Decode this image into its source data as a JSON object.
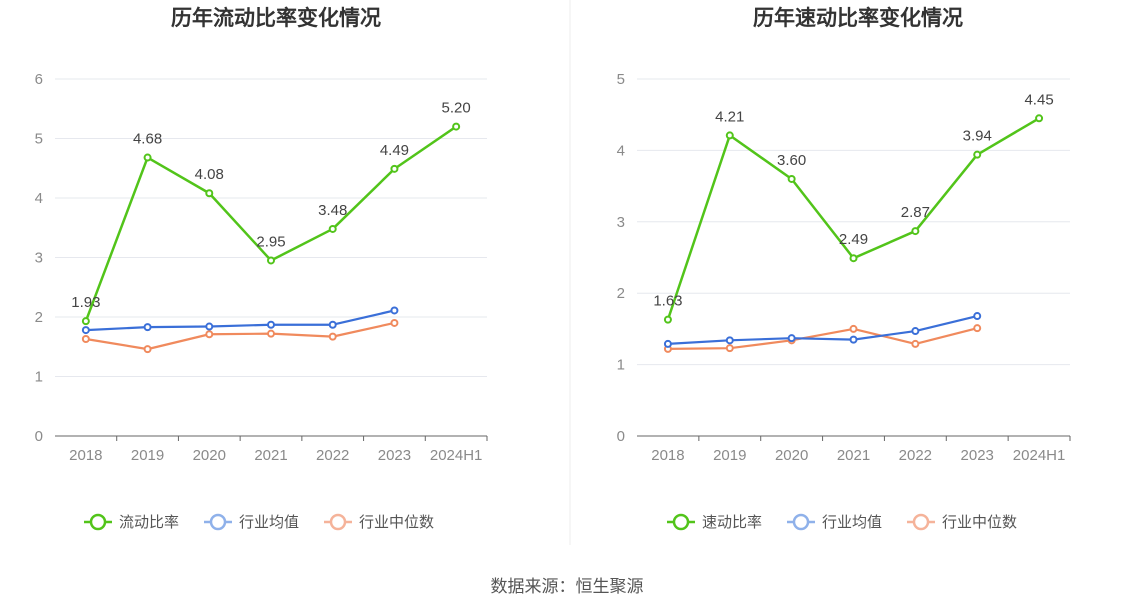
{
  "source_label": "数据来源：恒生聚源",
  "colors": {
    "primary": "#52c41a",
    "industry_avg": "#3a6fd8",
    "industry_median": "#f08a5d",
    "legend_avg": "#8fb1ea",
    "legend_median": "#f5b39a",
    "grid": "#e6e8ee",
    "axis": "#666666"
  },
  "chart_data": [
    {
      "type": "line",
      "title": "历年流动比率变化情况",
      "categories": [
        "2018",
        "2019",
        "2020",
        "2021",
        "2022",
        "2023",
        "2024H1"
      ],
      "ylim": [
        0,
        6
      ],
      "yticks": [
        0,
        1,
        2,
        3,
        4,
        5,
        6
      ],
      "grid": true,
      "legend_position": "bottom",
      "series": [
        {
          "name": "流动比率",
          "values": [
            1.93,
            4.68,
            4.08,
            2.95,
            3.48,
            4.49,
            5.2
          ],
          "labels": [
            "1.93",
            "4.68",
            "4.08",
            "2.95",
            "3.48",
            "4.49",
            "5.20"
          ]
        },
        {
          "name": "行业均值",
          "values": [
            1.78,
            1.83,
            1.84,
            1.87,
            1.87,
            2.11,
            null
          ]
        },
        {
          "name": "行业中位数",
          "values": [
            1.63,
            1.46,
            1.71,
            1.72,
            1.67,
            1.9,
            null
          ]
        }
      ]
    },
    {
      "type": "line",
      "title": "历年速动比率变化情况",
      "categories": [
        "2018",
        "2019",
        "2020",
        "2021",
        "2022",
        "2023",
        "2024H1"
      ],
      "ylim": [
        0,
        5
      ],
      "yticks": [
        0,
        1,
        2,
        3,
        4,
        5
      ],
      "grid": true,
      "legend_position": "bottom",
      "series": [
        {
          "name": "速动比率",
          "values": [
            1.63,
            4.21,
            3.6,
            2.49,
            2.87,
            3.94,
            4.45
          ],
          "labels": [
            "1.63",
            "4.21",
            "3.60",
            "2.49",
            "2.87",
            "3.94",
            "4.45"
          ]
        },
        {
          "name": "行业均值",
          "values": [
            1.29,
            1.34,
            1.37,
            1.35,
            1.47,
            1.68,
            null
          ]
        },
        {
          "name": "行业中位数",
          "values": [
            1.22,
            1.23,
            1.34,
            1.5,
            1.29,
            1.51,
            null
          ]
        }
      ]
    }
  ]
}
